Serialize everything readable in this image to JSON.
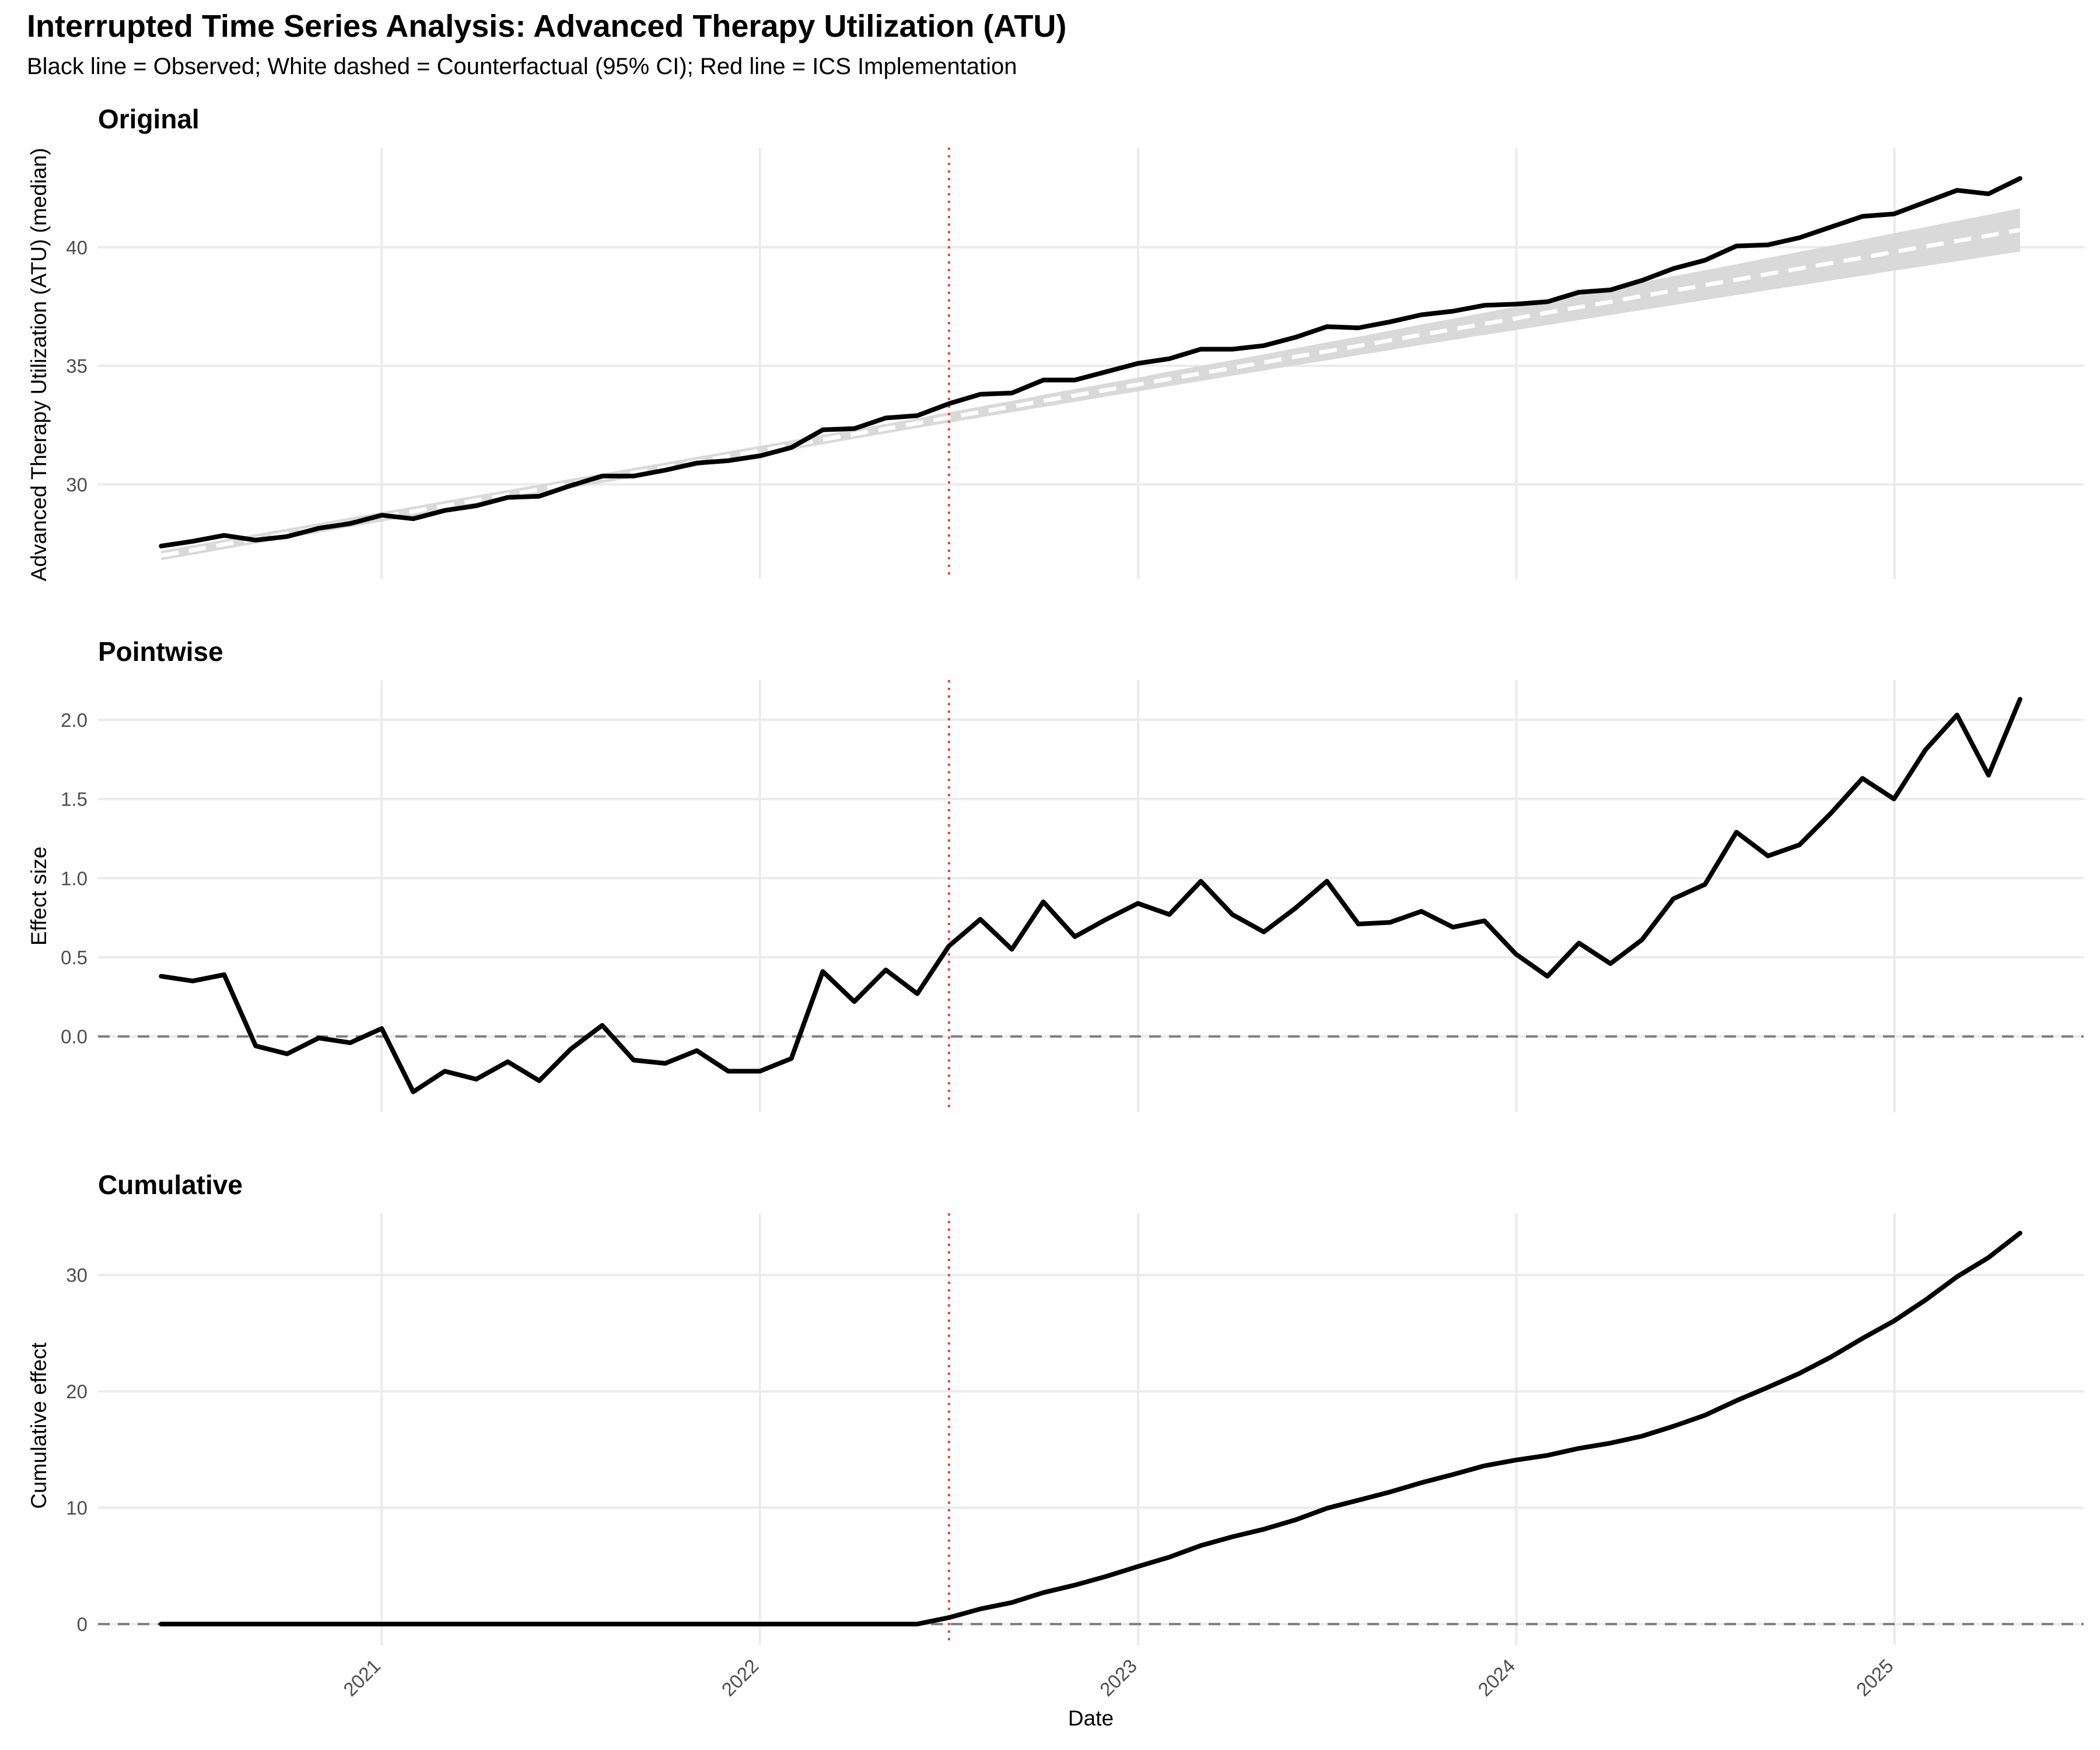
{
  "title": "Interrupted Time Series Analysis: Advanced Therapy Utilization (ATU)",
  "subtitle": "Black line = Observed; White dashed = Counterfactual (95% CI); Red line = ICS Implementation",
  "colors": {
    "observed": "#000000",
    "counterfactual": "#ffffff",
    "ci_band": "#d9d9d9",
    "intervention": "#e8443a",
    "zero_line": "#7f7f7f",
    "grid": "#ebebeb"
  },
  "chart_data": [
    {
      "type": "line",
      "panel_title": "Original",
      "ylabel": "Advanced Therapy Utilization (ATU) (median)",
      "xlabel": "",
      "x_start": 2020.417,
      "x_step": 0.0833,
      "ylim": [
        26,
        44.2
      ],
      "yticks": [
        30,
        35,
        40
      ],
      "intervention_x": 2022.5,
      "series": [
        {
          "name": "Observed",
          "values": [
            27.4,
            27.6,
            27.85,
            27.65,
            27.8,
            28.15,
            28.35,
            28.7,
            28.55,
            28.9,
            29.1,
            29.45,
            29.5,
            29.95,
            30.35,
            30.35,
            30.6,
            30.9,
            31.0,
            31.2,
            31.55,
            32.3,
            32.35,
            32.8,
            32.9,
            33.4,
            33.8,
            33.85,
            34.4,
            34.4,
            34.75,
            35.1,
            35.3,
            35.7,
            35.7,
            35.85,
            36.2,
            36.65,
            36.6,
            36.85,
            37.15,
            37.3,
            37.55,
            37.6,
            37.7,
            38.1,
            38.2,
            38.6,
            39.1,
            39.45,
            40.05,
            40.1,
            40.4,
            40.85,
            41.3,
            41.4,
            41.9,
            42.4,
            42.25,
            42.9
          ]
        },
        {
          "name": "Counterfactual",
          "values": [
            27.0,
            27.23,
            27.47,
            27.7,
            27.93,
            28.16,
            28.4,
            28.63,
            28.86,
            29.1,
            29.33,
            29.56,
            29.79,
            30.03,
            30.26,
            30.49,
            30.72,
            30.96,
            31.19,
            31.42,
            31.65,
            31.89,
            32.12,
            32.35,
            32.58,
            32.82,
            33.05,
            33.28,
            33.52,
            33.75,
            33.98,
            34.21,
            34.45,
            34.68,
            34.91,
            35.14,
            35.38,
            35.61,
            35.84,
            36.07,
            36.31,
            36.54,
            36.77,
            37.0,
            37.24,
            37.47,
            37.7,
            37.94,
            38.17,
            38.4,
            38.63,
            38.87,
            39.1,
            39.33,
            39.56,
            39.8,
            40.03,
            40.26,
            40.49,
            40.73
          ]
        },
        {
          "name": "CI lower",
          "values": [
            26.8,
            27.03,
            27.27,
            27.5,
            27.73,
            27.96,
            28.2,
            28.43,
            28.66,
            28.9,
            29.13,
            29.36,
            29.59,
            29.83,
            30.06,
            30.29,
            30.52,
            30.76,
            30.99,
            31.22,
            31.45,
            31.69,
            31.92,
            32.15,
            32.38,
            32.6,
            32.82,
            33.04,
            33.26,
            33.48,
            33.7,
            33.92,
            34.14,
            34.36,
            34.58,
            34.8,
            35.02,
            35.23,
            35.45,
            35.66,
            35.88,
            36.09,
            36.3,
            36.51,
            36.72,
            36.93,
            37.14,
            37.35,
            37.56,
            37.77,
            37.98,
            38.19,
            38.39,
            38.6,
            38.8,
            39.01,
            39.21,
            39.41,
            39.61,
            39.82
          ]
        },
        {
          "name": "CI upper",
          "values": [
            27.2,
            27.43,
            27.67,
            27.9,
            28.13,
            28.36,
            28.6,
            28.83,
            29.06,
            29.3,
            29.53,
            29.76,
            29.99,
            30.23,
            30.46,
            30.69,
            30.92,
            31.16,
            31.39,
            31.62,
            31.85,
            32.09,
            32.32,
            32.55,
            32.78,
            33.04,
            33.28,
            33.52,
            33.78,
            34.02,
            34.26,
            34.5,
            34.76,
            35.0,
            35.24,
            35.48,
            35.74,
            35.99,
            36.23,
            36.48,
            36.74,
            36.99,
            37.24,
            37.49,
            37.76,
            38.01,
            38.26,
            38.53,
            38.78,
            39.03,
            39.28,
            39.55,
            39.81,
            40.06,
            40.32,
            40.59,
            40.85,
            41.11,
            41.37,
            41.64
          ]
        }
      ]
    },
    {
      "type": "line",
      "panel_title": "Pointwise",
      "ylabel": "Effect size",
      "xlabel": "",
      "x_start": 2020.417,
      "x_step": 0.0833,
      "ylim": [
        -0.48,
        2.25
      ],
      "yticks": [
        0.0,
        0.5,
        1.0,
        1.5,
        2.0
      ],
      "ytick_labels": [
        "0.0",
        "0.5",
        "1.0",
        "1.5",
        "2.0"
      ],
      "intervention_x": 2022.5,
      "reference_y": 0,
      "series": [
        {
          "name": "Pointwise effect",
          "values": [
            0.38,
            0.35,
            0.39,
            -0.06,
            -0.11,
            -0.01,
            -0.04,
            0.05,
            -0.35,
            -0.22,
            -0.27,
            -0.16,
            -0.28,
            -0.08,
            0.07,
            -0.15,
            -0.17,
            -0.09,
            -0.22,
            -0.22,
            -0.14,
            0.41,
            0.22,
            0.42,
            0.27,
            0.57,
            0.74,
            0.55,
            0.85,
            0.63,
            0.74,
            0.84,
            0.77,
            0.98,
            0.77,
            0.66,
            0.81,
            0.98,
            0.71,
            0.72,
            0.79,
            0.69,
            0.73,
            0.52,
            0.38,
            0.59,
            0.46,
            0.61,
            0.87,
            0.96,
            1.29,
            1.14,
            1.21,
            1.41,
            1.63,
            1.5,
            1.81,
            2.03,
            1.65,
            2.13
          ]
        }
      ]
    },
    {
      "type": "line",
      "panel_title": "Cumulative",
      "ylabel": "Cumulative effect",
      "xlabel": "Date",
      "x_start": 2020.417,
      "x_step": 0.0833,
      "ylim": [
        -1.8,
        35.3
      ],
      "yticks": [
        0,
        10,
        20,
        30
      ],
      "intervention_x": 2022.5,
      "reference_y": 0,
      "xticks": [
        2021,
        2022,
        2023,
        2024,
        2025
      ],
      "xtick_labels": [
        "2021",
        "2022",
        "2023",
        "2024",
        "2025"
      ],
      "series": [
        {
          "name": "Cumulative effect",
          "values": [
            0,
            0,
            0,
            0,
            0,
            0,
            0,
            0,
            0,
            0,
            0,
            0,
            0,
            0,
            0,
            0,
            0,
            0,
            0,
            0,
            0,
            0,
            0,
            0,
            0,
            0.55,
            1.3,
            1.85,
            2.7,
            3.35,
            4.1,
            4.95,
            5.75,
            6.75,
            7.5,
            8.15,
            8.95,
            9.95,
            10.65,
            11.35,
            12.15,
            12.85,
            13.6,
            14.1,
            14.5,
            15.1,
            15.55,
            16.15,
            17.0,
            17.95,
            19.2,
            20.35,
            21.55,
            22.95,
            24.55,
            26.05,
            27.85,
            29.85,
            31.5,
            33.6
          ]
        }
      ]
    }
  ]
}
